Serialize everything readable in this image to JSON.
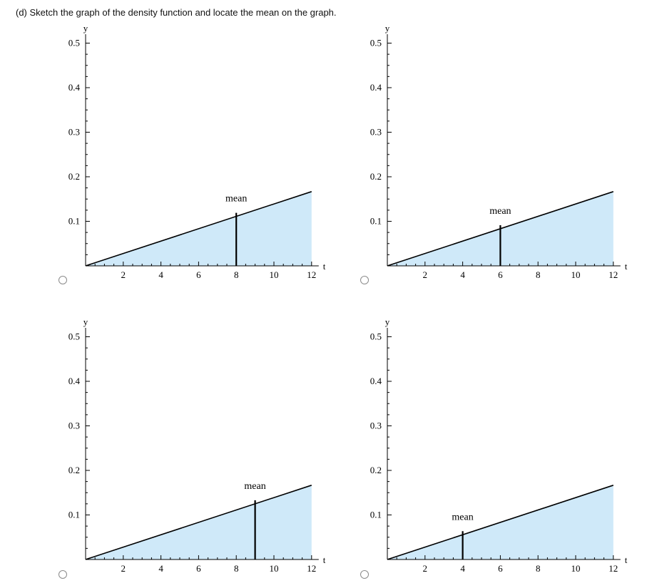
{
  "question": "(d) Sketch the graph of the density function and locate the mean on the graph.",
  "colors": {
    "fill": "#cfe9f9",
    "line": "#000000",
    "axis": "#000000"
  },
  "options": [
    {
      "id": 1,
      "selected": false,
      "mean_shown": 8
    },
    {
      "id": 2,
      "selected": false,
      "mean_shown": 6
    },
    {
      "id": 3,
      "selected": false,
      "mean_shown": 9
    },
    {
      "id": 4,
      "selected": false,
      "mean_shown": 4
    }
  ],
  "chart_data": [
    {
      "type": "area",
      "title": "",
      "xlabel": "t",
      "ylabel": "y",
      "xlim": [
        0,
        12.5
      ],
      "ylim": [
        0,
        0.52
      ],
      "x_ticks": [
        2,
        4,
        6,
        8,
        10,
        12
      ],
      "y_ticks": [
        0.1,
        0.2,
        0.3,
        0.4,
        0.5
      ],
      "grid": false,
      "legend": false,
      "series": [
        {
          "name": "density line",
          "x": [
            0,
            12
          ],
          "y": [
            0,
            0.1667
          ],
          "filled_under": true
        }
      ],
      "annotations": [
        {
          "label": "mean",
          "t": 8,
          "y": 0.1111
        }
      ]
    },
    {
      "type": "area",
      "title": "",
      "xlabel": "t",
      "ylabel": "y",
      "xlim": [
        0,
        12.5
      ],
      "ylim": [
        0,
        0.52
      ],
      "x_ticks": [
        2,
        4,
        6,
        8,
        10,
        12
      ],
      "y_ticks": [
        0.1,
        0.2,
        0.3,
        0.4,
        0.5
      ],
      "grid": false,
      "legend": false,
      "series": [
        {
          "name": "density line",
          "x": [
            0,
            12
          ],
          "y": [
            0,
            0.1667
          ],
          "filled_under": true
        }
      ],
      "annotations": [
        {
          "label": "mean",
          "t": 6,
          "y": 0.0833
        }
      ]
    },
    {
      "type": "area",
      "title": "",
      "xlabel": "t",
      "ylabel": "y",
      "xlim": [
        0,
        12.5
      ],
      "ylim": [
        0,
        0.52
      ],
      "x_ticks": [
        2,
        4,
        6,
        8,
        10,
        12
      ],
      "y_ticks": [
        0.1,
        0.2,
        0.3,
        0.4,
        0.5
      ],
      "grid": false,
      "legend": false,
      "series": [
        {
          "name": "density line",
          "x": [
            0,
            12
          ],
          "y": [
            0,
            0.1667
          ],
          "filled_under": true
        }
      ],
      "annotations": [
        {
          "label": "mean",
          "t": 9,
          "y": 0.125
        }
      ]
    },
    {
      "type": "area",
      "title": "",
      "xlabel": "t",
      "ylabel": "y",
      "xlim": [
        0,
        12.5
      ],
      "ylim": [
        0,
        0.52
      ],
      "x_ticks": [
        2,
        4,
        6,
        8,
        10,
        12
      ],
      "y_ticks": [
        0.1,
        0.2,
        0.3,
        0.4,
        0.5
      ],
      "grid": false,
      "legend": false,
      "series": [
        {
          "name": "density line",
          "x": [
            0,
            12
          ],
          "y": [
            0,
            0.1667
          ],
          "filled_under": true
        }
      ],
      "annotations": [
        {
          "label": "mean",
          "t": 4,
          "y": 0.0556
        }
      ]
    }
  ]
}
